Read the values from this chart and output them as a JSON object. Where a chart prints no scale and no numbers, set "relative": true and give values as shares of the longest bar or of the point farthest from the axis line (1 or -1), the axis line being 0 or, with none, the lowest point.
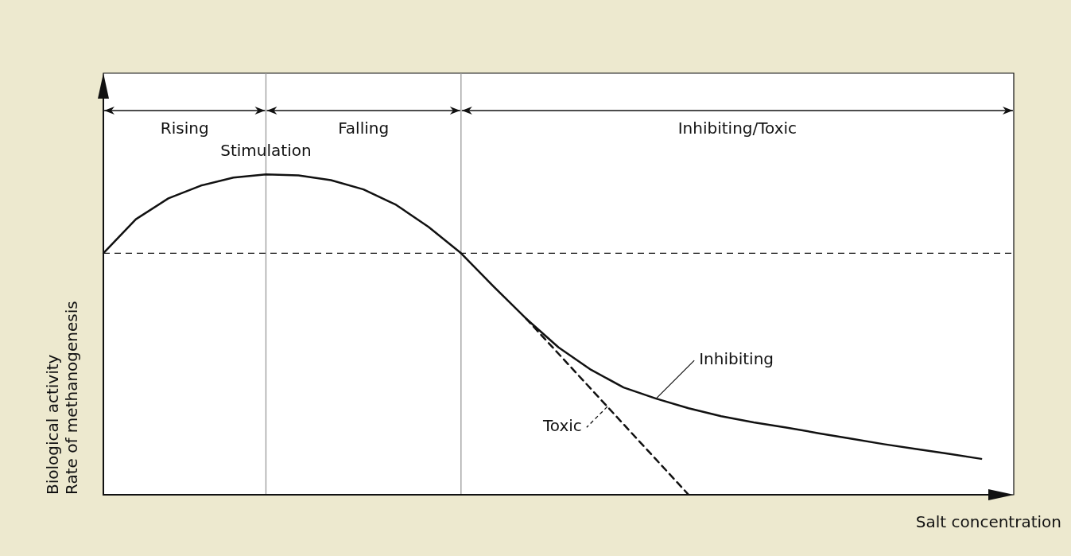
{
  "chart_data": {
    "type": "line",
    "relative": true,
    "xlabel": "Salt concentration",
    "ylabel": "Biological activity\nRate of methanogenesis",
    "marker": "none",
    "categories": [
      null,
      null,
      null,
      null,
      null,
      null,
      null,
      null,
      null,
      null,
      null,
      null,
      null,
      null,
      null,
      null,
      null,
      null,
      null,
      null,
      null,
      null,
      null,
      null,
      null,
      null,
      null,
      null,
      null
    ],
    "series": [
      {
        "name": "Inhibiting",
        "color": "#111111",
        "line_style": "solid",
        "values": [
          0.754,
          0.86,
          0.925,
          0.965,
          0.99,
          1,
          0.997,
          0.982,
          0.953,
          0.905,
          0.836,
          0.754,
          0.65,
          0.55,
          0.46,
          0.39,
          0.335,
          0.3,
          0.27,
          0.245,
          0.226,
          0.21,
          0.192,
          0.175,
          0.158,
          0.143,
          0.128,
          0.112,
          null
        ]
      },
      {
        "name": "Toxic",
        "color": "#111111",
        "line_style": "dashed",
        "values": [
          null,
          null,
          null,
          null,
          null,
          null,
          null,
          null,
          null,
          null,
          null,
          null,
          null,
          0.55,
          0.44,
          0.33,
          0.22,
          0.11,
          0,
          null,
          null,
          null,
          null,
          null,
          null,
          null,
          null,
          null,
          null
        ]
      }
    ],
    "ref_lines": [
      {
        "axis": "y",
        "value": 0.754,
        "color": "#111111",
        "line_style": "dashed"
      }
    ],
    "annotations": [
      "Rising",
      "Falling",
      "Inhibiting/Toxic",
      "Stimulation"
    ]
  }
}
